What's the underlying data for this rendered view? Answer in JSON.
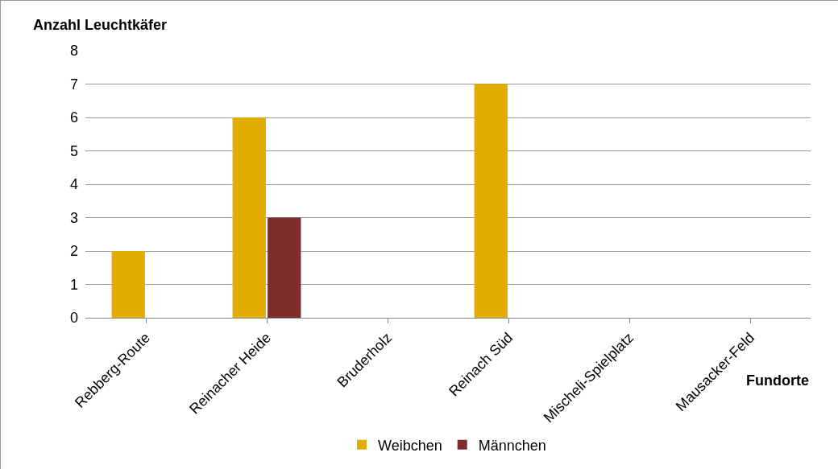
{
  "chart_data": {
    "type": "bar",
    "xlabel": "Fundorte",
    "ylabel": "Anzahl Leuchtkäfer",
    "categories": [
      "Rebberg-Route",
      "Reinacher Heide",
      "Bruderholz",
      "Reinach Süd",
      "Mischeli-Spielplatz",
      "Mausacker-Feld"
    ],
    "series": [
      {
        "name": "Weibchen",
        "color": "#e3ac00",
        "values": [
          2,
          6,
          0,
          7,
          0,
          0
        ]
      },
      {
        "name": "Männchen",
        "color": "#7f2c2c",
        "values": [
          0,
          3,
          0,
          0,
          0,
          0
        ]
      }
    ],
    "ylim": [
      0,
      8
    ],
    "yticks": [
      0,
      1,
      2,
      3,
      4,
      5,
      6,
      7,
      8
    ],
    "grid": "y",
    "legend": "bottom"
  }
}
